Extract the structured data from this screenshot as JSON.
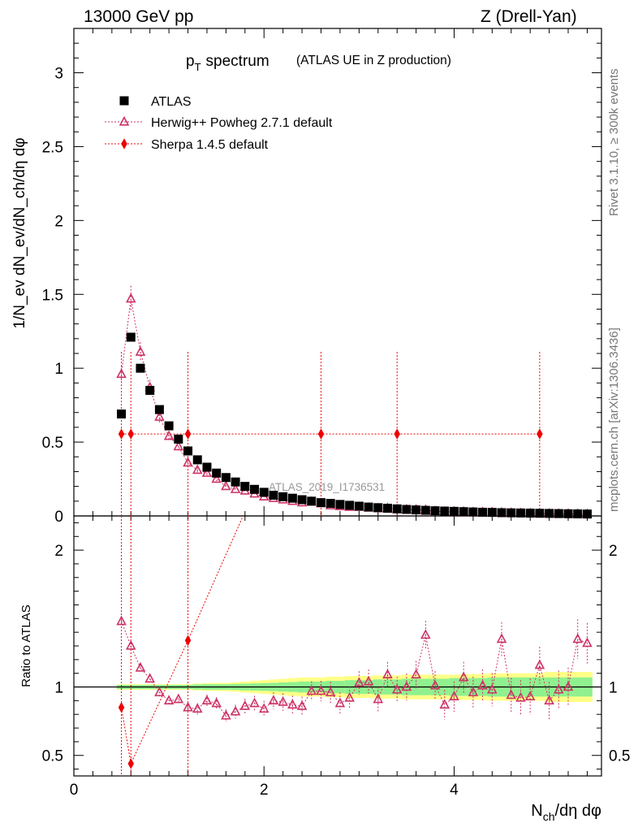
{
  "header": {
    "energy": "13000 GeV pp",
    "process": "Z (Drell-Yan)"
  },
  "side_labels": {
    "rivet": "Rivet 3.1.10, ≥ 300k events",
    "mcplots": "mcplots.cern.ch [arXiv:1306.3436]"
  },
  "colors": {
    "atlas": "#000000",
    "herwig": "#cc3366",
    "sherpa": "#ee0000",
    "band_inner": "#8ff08f",
    "band_outer": "#ffff88"
  },
  "chart_data": [
    {
      "type": "scatter",
      "title": "p_T spectrum",
      "title_main": "p",
      "title_sub": "T",
      "title_rest": "spectrum",
      "subtitle": "(ATLAS UE in Z production)",
      "watermark": "ATLAS_2019_I1736531",
      "ylabel": "1/N_ev dN_ev/dN_ch/dη dφ",
      "ylim": [
        0,
        3.3
      ],
      "xlim": [
        0,
        5.55
      ],
      "yticks": [
        {
          "v": 0,
          "label": "0"
        },
        {
          "v": 0.5,
          "label": "0.5"
        },
        {
          "v": 1,
          "label": "1"
        },
        {
          "v": 1.5,
          "label": "1.5"
        },
        {
          "v": 2,
          "label": "2"
        },
        {
          "v": 2.5,
          "label": "2.5"
        },
        {
          "v": 3,
          "label": "3"
        }
      ],
      "legend": [
        {
          "name": "ATLAS",
          "marker": "square",
          "key": "atlas"
        },
        {
          "name": "Herwig++ Powheg 2.7.1 default",
          "marker": "triangle",
          "key": "herwig"
        },
        {
          "name": "Sherpa 1.4.5 default",
          "marker": "diamond",
          "key": "sherpa"
        }
      ],
      "x": [
        0.5,
        0.6,
        0.7,
        0.8,
        0.9,
        1.0,
        1.1,
        1.2,
        1.3,
        1.4,
        1.5,
        1.6,
        1.7,
        1.8,
        1.9,
        2.0,
        2.1,
        2.2,
        2.3,
        2.4,
        2.5,
        2.6,
        2.7,
        2.8,
        2.9,
        3.0,
        3.1,
        3.2,
        3.3,
        3.4,
        3.5,
        3.6,
        3.7,
        3.8,
        3.9,
        4.0,
        4.1,
        4.2,
        4.3,
        4.4,
        4.5,
        4.6,
        4.7,
        4.8,
        4.9,
        5.0,
        5.1,
        5.2,
        5.3,
        5.4
      ],
      "series": [
        {
          "name": "ATLAS",
          "key": "atlas",
          "values": [
            0.69,
            1.21,
            1.0,
            0.85,
            0.72,
            0.61,
            0.52,
            0.44,
            0.38,
            0.33,
            0.29,
            0.26,
            0.23,
            0.2,
            0.18,
            0.16,
            0.14,
            0.13,
            0.12,
            0.11,
            0.1,
            0.09,
            0.085,
            0.078,
            0.072,
            0.066,
            0.06,
            0.056,
            0.052,
            0.048,
            0.044,
            0.041,
            0.038,
            0.035,
            0.033,
            0.031,
            0.029,
            0.027,
            0.025,
            0.024,
            0.022,
            0.021,
            0.02,
            0.019,
            0.018,
            0.017,
            0.016,
            0.015,
            0.014,
            0.013
          ]
        },
        {
          "name": "Herwig++ Powheg 2.7.1 default",
          "key": "herwig",
          "values": [
            0.96,
            1.47,
            1.11,
            0.87,
            0.67,
            0.54,
            0.47,
            0.36,
            0.31,
            0.29,
            0.25,
            0.2,
            0.18,
            0.17,
            0.15,
            0.13,
            0.12,
            0.11,
            0.1,
            0.09,
            0.095,
            0.085,
            0.07,
            0.065,
            0.06,
            0.06,
            0.055,
            0.05,
            0.052,
            0.044,
            0.043,
            0.042,
            0.04,
            0.032,
            0.028,
            0.027,
            0.028,
            0.025,
            0.025,
            0.024,
            0.022,
            0.02,
            0.018,
            0.017,
            0.017,
            0.015,
            0.014,
            0.014,
            0.013,
            0.012
          ]
        }
      ],
      "sherpa_points": [
        {
          "x": 0.5,
          "y": 0.555
        },
        {
          "x": 0.6,
          "y": 0.555
        },
        {
          "x": 1.2,
          "y": 0.555
        },
        {
          "x": 2.6,
          "y": 0.555
        },
        {
          "x": 3.4,
          "y": 0.555
        },
        {
          "x": 4.9,
          "y": 0.555
        }
      ]
    },
    {
      "type": "scatter",
      "ylabel": "Ratio to ATLAS",
      "xlabel": "N_ch/dη dφ",
      "xlabel_main": "N",
      "xlabel_sub": "ch",
      "xlabel_rest": "/dη dφ",
      "ylim": [
        0.35,
        2.25
      ],
      "xlim": [
        0,
        5.55
      ],
      "xticks": [
        {
          "v": 0,
          "label": "0"
        },
        {
          "v": 2,
          "label": "2"
        },
        {
          "v": 4,
          "label": "4"
        }
      ],
      "yticks": [
        {
          "v": 0.5,
          "label": "0.5"
        },
        {
          "v": 1,
          "label": "1"
        },
        {
          "v": 2,
          "label": "2"
        }
      ],
      "herwig_ratio": [
        1.48,
        1.3,
        1.14,
        1.06,
        0.96,
        0.9,
        0.91,
        0.85,
        0.84,
        0.9,
        0.88,
        0.79,
        0.82,
        0.86,
        0.88,
        0.84,
        0.9,
        0.89,
        0.87,
        0.86,
        0.97,
        0.97,
        0.96,
        0.88,
        0.92,
        1.03,
        1.04,
        0.91,
        1.09,
        0.98,
        1.0,
        1.09,
        1.38,
        1.01,
        0.87,
        0.93,
        1.07,
        0.96,
        1.01,
        0.98,
        1.35,
        0.94,
        0.92,
        0.93,
        1.16,
        0.9,
        0.98,
        1.0,
        1.35,
        1.32
      ],
      "sherpa_ratio": [
        {
          "x": 0.5,
          "y": 0.85
        },
        {
          "x": 0.6,
          "y": 0.44
        },
        {
          "x": 1.2,
          "y": 1.34
        }
      ],
      "band_inner": [
        0.015,
        0.015,
        0.015,
        0.015,
        0.015,
        0.015,
        0.015,
        0.015,
        0.018,
        0.02,
        0.02,
        0.02,
        0.022,
        0.024,
        0.026,
        0.028,
        0.03,
        0.033,
        0.036,
        0.04,
        0.04,
        0.04,
        0.045,
        0.045,
        0.05,
        0.05,
        0.05,
        0.055,
        0.055,
        0.055,
        0.06,
        0.06,
        0.06,
        0.06,
        0.06,
        0.065,
        0.065,
        0.065,
        0.065,
        0.07,
        0.07,
        0.07,
        0.07,
        0.07,
        0.07,
        0.07,
        0.07,
        0.07,
        0.07,
        0.07
      ],
      "band_outer": [
        0.02,
        0.02,
        0.02,
        0.02,
        0.02,
        0.02,
        0.02,
        0.02,
        0.025,
        0.028,
        0.03,
        0.03,
        0.035,
        0.04,
        0.045,
        0.05,
        0.055,
        0.06,
        0.065,
        0.07,
        0.07,
        0.07,
        0.075,
        0.075,
        0.08,
        0.08,
        0.08,
        0.085,
        0.085,
        0.085,
        0.09,
        0.09,
        0.09,
        0.09,
        0.09,
        0.09,
        0.095,
        0.095,
        0.095,
        0.1,
        0.1,
        0.1,
        0.1,
        0.1,
        0.1,
        0.11,
        0.11,
        0.11,
        0.11,
        0.11
      ]
    }
  ]
}
